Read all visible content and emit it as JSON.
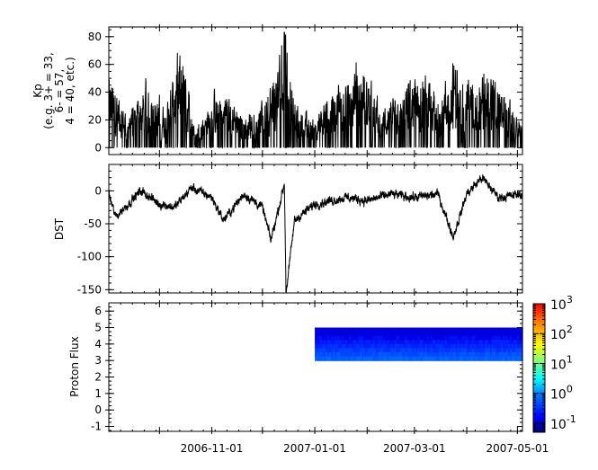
{
  "chart_data": [
    {
      "type": "line",
      "title": "",
      "ylabel": [
        "Kp",
        "(e.g. 3+ = 33,",
        "6- = 57,",
        "4 = 40, etc.)"
      ],
      "ylim": [
        -5,
        87
      ],
      "yticks": [
        0,
        20,
        40,
        60,
        80
      ],
      "x_range": [
        "2006-09-01",
        "2007-05-04"
      ],
      "series": [
        {
          "values_description": "3-hourly Kp index (x10) spiking between 0 and ~50, peak ~83 near 2006-12-14",
          "points": [
            [
              "2006-09-01",
              43
            ],
            [
              "2006-09-10",
              18
            ],
            [
              "2006-09-22",
              33
            ],
            [
              "2006-10-05",
              20
            ],
            [
              "2006-10-14",
              57
            ],
            [
              "2006-10-22",
              10
            ],
            [
              "2006-11-01",
              27
            ],
            [
              "2006-11-10",
              30
            ],
            [
              "2006-11-20",
              17
            ],
            [
              "2006-12-01",
              25
            ],
            [
              "2006-12-10",
              40
            ],
            [
              "2006-12-14",
              83
            ],
            [
              "2006-12-20",
              23
            ],
            [
              "2007-01-01",
              15
            ],
            [
              "2007-01-15",
              35
            ],
            [
              "2007-01-30",
              45
            ],
            [
              "2007-02-10",
              20
            ],
            [
              "2007-02-20",
              30
            ],
            [
              "2007-03-01",
              40
            ],
            [
              "2007-03-15",
              27
            ],
            [
              "2007-03-25",
              45
            ],
            [
              "2007-04-05",
              35
            ],
            [
              "2007-04-15",
              43
            ],
            [
              "2007-04-25",
              25
            ],
            [
              "2007-05-04",
              15
            ]
          ]
        }
      ]
    },
    {
      "type": "line",
      "title": "",
      "ylabel": "DST",
      "ylim": [
        -155,
        40
      ],
      "yticks": [
        0,
        -50,
        -100,
        -150
      ],
      "x_range": [
        "2006-09-01",
        "2007-05-04"
      ],
      "series": [
        {
          "values_description": "Hourly Dst index, mostly -40 to +10 nT, storm minimum ~ -155 near 2006-12-15",
          "points": [
            [
              "2006-09-01",
              -5
            ],
            [
              "2006-09-05",
              -40
            ],
            [
              "2006-09-20",
              0
            ],
            [
              "2006-10-01",
              -20
            ],
            [
              "2006-10-10",
              -25
            ],
            [
              "2006-10-20",
              5
            ],
            [
              "2006-11-01",
              -10
            ],
            [
              "2006-11-08",
              -45
            ],
            [
              "2006-11-20",
              -5
            ],
            [
              "2006-12-01",
              -25
            ],
            [
              "2006-12-06",
              -75
            ],
            [
              "2006-12-14",
              10
            ],
            [
              "2006-12-15",
              -155
            ],
            [
              "2006-12-20",
              -45
            ],
            [
              "2007-01-01",
              -20
            ],
            [
              "2007-01-20",
              -10
            ],
            [
              "2007-02-01",
              -15
            ],
            [
              "2007-02-15",
              -5
            ],
            [
              "2007-03-01",
              -10
            ],
            [
              "2007-03-15",
              -5
            ],
            [
              "2007-03-24",
              -70
            ],
            [
              "2007-04-01",
              -5
            ],
            [
              "2007-04-10",
              20
            ],
            [
              "2007-04-20",
              -10
            ],
            [
              "2007-05-04",
              -5
            ]
          ]
        }
      ]
    },
    {
      "type": "heatmap",
      "title": "",
      "ylabel": "Proton Flux",
      "ylim": [
        -1.3,
        6.5
      ],
      "yticks": [
        6,
        5,
        4,
        3,
        2,
        1,
        0,
        -1
      ],
      "x_range": [
        "2006-09-01",
        "2007-05-04"
      ],
      "data_x_range": [
        "2007-01-01",
        "2007-05-04"
      ],
      "y_bins": [
        3,
        5
      ],
      "values_description": "Flux ~0.1 (dark/medium blue) in bands 3-5, data only after 2007-01-01",
      "colorbar": {
        "scale": "log",
        "range": [
          0.05,
          1000
        ],
        "ticks": [
          {
            "base": "10",
            "exp": "3",
            "value": 1000
          },
          {
            "base": "10",
            "exp": "2",
            "value": 100
          },
          {
            "base": "10",
            "exp": "1",
            "value": 10
          },
          {
            "base": "10",
            "exp": "0",
            "value": 1
          },
          {
            "base": "10",
            "exp": "-1",
            "value": 0.1
          }
        ]
      },
      "xtick_labels": [
        {
          "date": "2006-11-01",
          "label": "2006-11-01"
        },
        {
          "date": "2007-01-01",
          "label": "2007-01-01"
        },
        {
          "date": "2007-03-01",
          "label": "2007-03-01"
        },
        {
          "date": "2007-05-01",
          "label": "2007-05-01"
        }
      ],
      "xminor_ticks": [
        "2006-10-01",
        "2006-12-01",
        "2007-02-01",
        "2007-04-01"
      ]
    }
  ]
}
